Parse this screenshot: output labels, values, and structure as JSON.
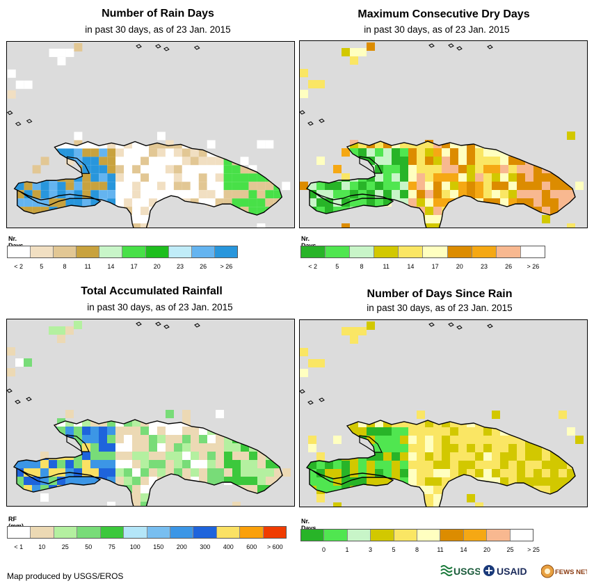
{
  "panels": [
    {
      "title": "Number of Rain Days",
      "subtitle": "in past 30 days, as of 23 Jan. 2015",
      "legend_title": "Nr. Days",
      "legend_colors": [
        "#ffffff",
        "#f1dfc2",
        "#e2c794",
        "#c8a23e",
        "#c8f5c8",
        "#48e048",
        "#1ebe1e",
        "#c0ecf8",
        "#64b4f0",
        "#2896dc"
      ],
      "legend_ticks": [
        "< 2",
        "5",
        "8",
        "11",
        "14",
        "17",
        "20",
        "23",
        "26",
        "> 26"
      ],
      "legend_tick_mode": "center",
      "map_theme": "rain_days"
    },
    {
      "title": "Maximum Consecutive Dry Days",
      "subtitle": "in past 30 days, as of 23 Jan. 2015",
      "legend_title": "Nr. Days",
      "legend_colors": [
        "#28b428",
        "#50e650",
        "#c8f5c8",
        "#d2c800",
        "#fae664",
        "#ffffc0",
        "#dc8c00",
        "#f5a814",
        "#f8b890",
        "#ffffff"
      ],
      "legend_ticks": [
        "< 2",
        "5",
        "8",
        "11",
        "14",
        "17",
        "20",
        "23",
        "26",
        "> 26"
      ],
      "legend_tick_mode": "center",
      "map_theme": "dry_days"
    },
    {
      "title": "Total Accumulated Rainfall",
      "subtitle": "in past 30 days, as of 23 Jan. 2015",
      "legend_title": "RF (mm)",
      "legend_colors": [
        "#ffffff",
        "#ecd9b4",
        "#b4f0a0",
        "#78dc78",
        "#3cc83c",
        "#b4e6f8",
        "#78bef0",
        "#3c96e6",
        "#1e64dc",
        "#fae164",
        "#faa00a",
        "#f03c00"
      ],
      "legend_ticks": [
        "< 1",
        "10",
        "25",
        "50",
        "75",
        "100",
        "150",
        "200",
        "300",
        "400",
        "600",
        "> 600"
      ],
      "legend_tick_mode": "center",
      "map_theme": "rainfall"
    },
    {
      "title": "Number of Days Since Rain",
      "subtitle": "in past 30 days, as of 23 Jan. 2015",
      "legend_title": "Nr. Days",
      "legend_colors": [
        "#28b428",
        "#50e650",
        "#c8f5c8",
        "#d2c800",
        "#fae664",
        "#ffffc0",
        "#dc8c00",
        "#f5a814",
        "#f8b890",
        "#ffffff"
      ],
      "legend_ticks": [
        "0",
        "1",
        "3",
        "5",
        "8",
        "11",
        "14",
        "20",
        "25",
        "> 25"
      ],
      "legend_tick_mode": "boundary",
      "map_theme": "days_since"
    }
  ],
  "footer": "Map produced by USGS/EROS",
  "logos": [
    "USGS",
    "USAID",
    "FEWS NET"
  ]
}
